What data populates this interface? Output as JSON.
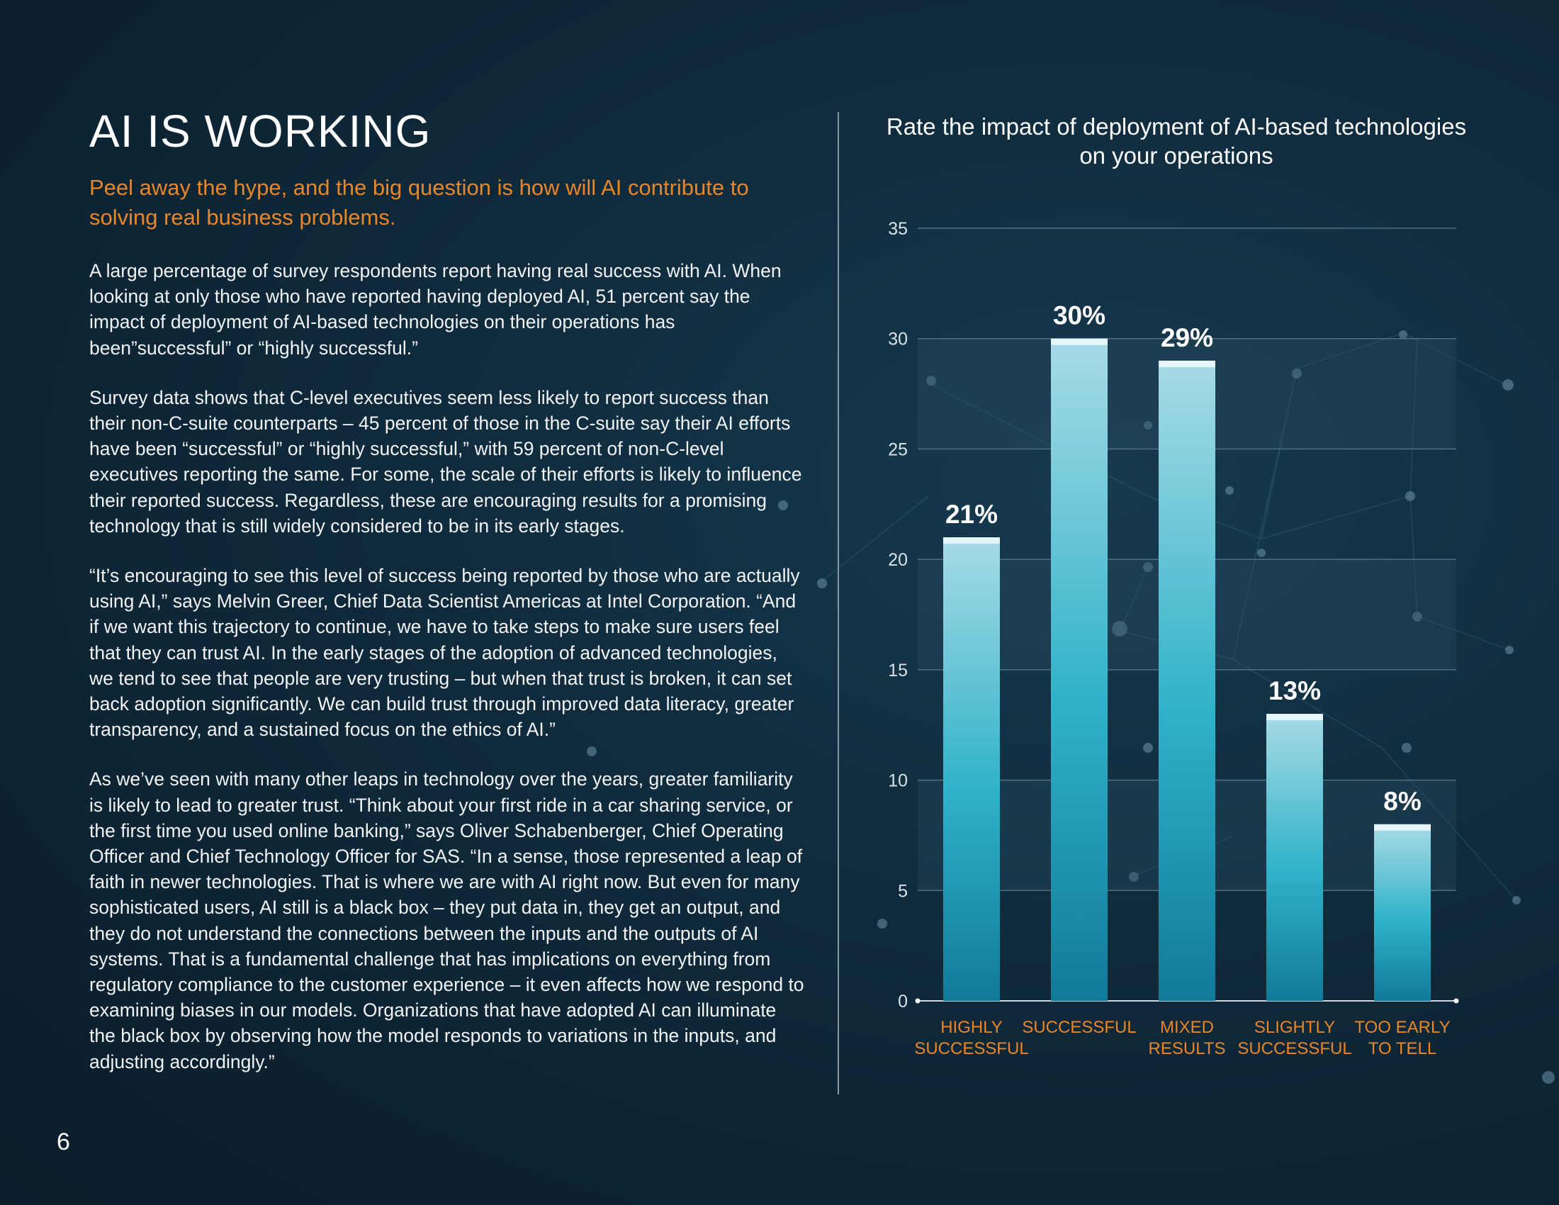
{
  "page": {
    "title": "AI IS WORKING",
    "subtitle": "Peel away the hype, and the big question is how will AI contribute to solving real business problems.",
    "paragraphs": [
      "A large percentage of survey respondents report having real success with AI. When looking at only those who have reported having deployed AI, 51 percent say the impact of deployment of AI-based technologies on their operations has been”successful” or “highly successful.”",
      "Survey data shows that C-level executives seem less likely to report success than their non-C-suite counterparts – 45 percent of those in the C-suite say their AI efforts have been “successful” or “highly successful,” with 59 percent of non-C-level executives reporting the same. For some, the scale of their efforts is likely to influence their reported success. Regardless, these are encouraging results for a promising technology that is still widely considered to be in its early stages.",
      "“It’s encouraging to see this level of success being reported by those who are actually using AI,” says Melvin Greer, Chief Data Scientist Americas at Intel Corporation. “And if we want this trajectory to continue, we have to take steps to make sure users feel that they can trust AI. In the early stages of the adoption of advanced technologies, we tend to see that people are very trusting – but when that trust is broken, it can set back adoption significantly. We can build trust through improved data literacy, greater transparency, and a sustained focus on the ethics of AI.”",
      "As we’ve seen with many other leaps in technology over the years, greater familiarity is likely to lead to greater trust. “Think about your first ride in a car sharing service, or the first time you used online banking,” says Oliver Schabenberger, Chief Operating Officer and Chief Technology Officer for SAS. “In a sense, those represented a leap of faith in newer technologies. That is where we are with AI right now. But even for many sophisticated users, AI still is a black box – they put data in, they get an output, and they do not understand the connections between the inputs and the outputs of AI systems. That is a fundamental challenge that has implications on everything from regulatory compliance to the customer experience – it even affects how we respond to examining biases in our models. Organizations that have adopted AI can illuminate the black box by observing how the model responds to variations in the inputs, and adjusting accordingly.”"
    ],
    "page_number": "6"
  },
  "colors": {
    "accent": "#e8862a",
    "bar_top": "#a8dbe6",
    "bar_mid": "#2fb2c8",
    "bar_bottom": "#117a98",
    "bar_cap": "#e6f6fa"
  },
  "chart_data": {
    "type": "bar",
    "title": "Rate the impact of deployment of AI-based technologies on your operations",
    "categories": [
      [
        "HIGHLY",
        "SUCCESSFUL"
      ],
      [
        "SUCCESSFUL"
      ],
      [
        "MIXED",
        "RESULTS"
      ],
      [
        "SLIGHTLY",
        "SUCCESSFUL"
      ],
      [
        "TOO EARLY",
        "TO TELL"
      ]
    ],
    "values": [
      21,
      30,
      29,
      13,
      8
    ],
    "data_labels": [
      "21%",
      "30%",
      "29%",
      "13%",
      "8%"
    ],
    "ylim": [
      0,
      35
    ],
    "yticks": [
      0,
      5,
      10,
      15,
      20,
      25,
      30,
      35
    ],
    "xlabel": "",
    "ylabel": "",
    "grid": true
  }
}
